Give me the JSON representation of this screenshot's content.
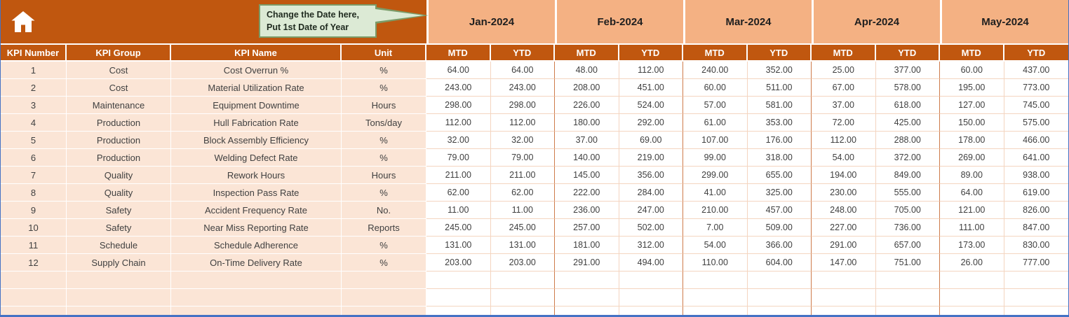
{
  "colors": {
    "header_orange": "#C0570F",
    "month_band_peach": "#F4B183",
    "left_region_pink": "#FBE5D6",
    "grid_line_light": "#F4D5C0",
    "month_divider": "#CE7B4B",
    "callout_fill": "#DCEAD5",
    "callout_border": "#7B9B68",
    "bottom_border_blue": "#4472C4"
  },
  "icons": {
    "home": "home-icon"
  },
  "callout": {
    "line1": "Change the Date here,",
    "line2": "Put 1st Date of Year"
  },
  "months": [
    "Jan-2024",
    "Feb-2024",
    "Mar-2024",
    "Apr-2024",
    "May-2024"
  ],
  "table": {
    "left_headers": [
      "KPI Number",
      "KPI Group",
      "KPI Name",
      "Unit"
    ],
    "sub_headers": [
      "MTD",
      "YTD"
    ],
    "empty_row_count": 3,
    "rows": [
      {
        "kpi_number": "1",
        "kpi_group": "Cost",
        "kpi_name": "Cost Overrun %",
        "unit": "%",
        "values": [
          "64.00",
          "64.00",
          "48.00",
          "112.00",
          "240.00",
          "352.00",
          "25.00",
          "377.00",
          "60.00",
          "437.00"
        ]
      },
      {
        "kpi_number": "2",
        "kpi_group": "Cost",
        "kpi_name": "Material Utilization Rate",
        "unit": "%",
        "values": [
          "243.00",
          "243.00",
          "208.00",
          "451.00",
          "60.00",
          "511.00",
          "67.00",
          "578.00",
          "195.00",
          "773.00"
        ]
      },
      {
        "kpi_number": "3",
        "kpi_group": "Maintenance",
        "kpi_name": "Equipment Downtime",
        "unit": "Hours",
        "values": [
          "298.00",
          "298.00",
          "226.00",
          "524.00",
          "57.00",
          "581.00",
          "37.00",
          "618.00",
          "127.00",
          "745.00"
        ]
      },
      {
        "kpi_number": "4",
        "kpi_group": "Production",
        "kpi_name": "Hull Fabrication Rate",
        "unit": "Tons/day",
        "values": [
          "112.00",
          "112.00",
          "180.00",
          "292.00",
          "61.00",
          "353.00",
          "72.00",
          "425.00",
          "150.00",
          "575.00"
        ]
      },
      {
        "kpi_number": "5",
        "kpi_group": "Production",
        "kpi_name": "Block Assembly Efficiency",
        "unit": "%",
        "values": [
          "32.00",
          "32.00",
          "37.00",
          "69.00",
          "107.00",
          "176.00",
          "112.00",
          "288.00",
          "178.00",
          "466.00"
        ]
      },
      {
        "kpi_number": "6",
        "kpi_group": "Production",
        "kpi_name": "Welding Defect Rate",
        "unit": "%",
        "values": [
          "79.00",
          "79.00",
          "140.00",
          "219.00",
          "99.00",
          "318.00",
          "54.00",
          "372.00",
          "269.00",
          "641.00"
        ]
      },
      {
        "kpi_number": "7",
        "kpi_group": "Quality",
        "kpi_name": "Rework Hours",
        "unit": "Hours",
        "values": [
          "211.00",
          "211.00",
          "145.00",
          "356.00",
          "299.00",
          "655.00",
          "194.00",
          "849.00",
          "89.00",
          "938.00"
        ]
      },
      {
        "kpi_number": "8",
        "kpi_group": "Quality",
        "kpi_name": "Inspection Pass Rate",
        "unit": "%",
        "values": [
          "62.00",
          "62.00",
          "222.00",
          "284.00",
          "41.00",
          "325.00",
          "230.00",
          "555.00",
          "64.00",
          "619.00"
        ]
      },
      {
        "kpi_number": "9",
        "kpi_group": "Safety",
        "kpi_name": "Accident Frequency Rate",
        "unit": "No.",
        "values": [
          "11.00",
          "11.00",
          "236.00",
          "247.00",
          "210.00",
          "457.00",
          "248.00",
          "705.00",
          "121.00",
          "826.00"
        ]
      },
      {
        "kpi_number": "10",
        "kpi_group": "Safety",
        "kpi_name": "Near Miss Reporting Rate",
        "unit": "Reports",
        "values": [
          "245.00",
          "245.00",
          "257.00",
          "502.00",
          "7.00",
          "509.00",
          "227.00",
          "736.00",
          "111.00",
          "847.00"
        ]
      },
      {
        "kpi_number": "11",
        "kpi_group": "Schedule",
        "kpi_name": "Schedule Adherence",
        "unit": "%",
        "values": [
          "131.00",
          "131.00",
          "181.00",
          "312.00",
          "54.00",
          "366.00",
          "291.00",
          "657.00",
          "173.00",
          "830.00"
        ]
      },
      {
        "kpi_number": "12",
        "kpi_group": "Supply Chain",
        "kpi_name": "On-Time Delivery Rate",
        "unit": "%",
        "values": [
          "203.00",
          "203.00",
          "291.00",
          "494.00",
          "110.00",
          "604.00",
          "147.00",
          "751.00",
          "26.00",
          "777.00"
        ]
      }
    ]
  }
}
